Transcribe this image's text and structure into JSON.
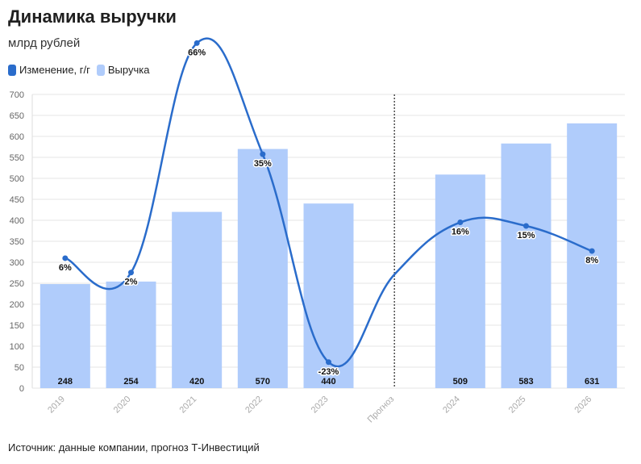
{
  "header": {
    "title": "Динамика выручки",
    "subtitle": "млрд рублей"
  },
  "legend": [
    {
      "label": "Изменение, г/г",
      "color": "#2a6ccb"
    },
    {
      "label": "Выручка",
      "color": "#b0ccfb"
    }
  ],
  "footer": {
    "source": "Источник: данные компании, прогноз Т-Инвестиций"
  },
  "colors": {
    "bar": "#b0ccfb",
    "line": "#2a6ccb",
    "divider": "#333333"
  },
  "chart_data": {
    "type": "bar",
    "categories": [
      "2019",
      "2020",
      "2021",
      "2022",
      "2023",
      "Прогноз",
      "2024",
      "2025",
      "2026"
    ],
    "series": [
      {
        "name": "Выручка",
        "type": "bar",
        "values": [
          248,
          254,
          420,
          570,
          440,
          null,
          509,
          583,
          631
        ],
        "labels": [
          "248",
          "254",
          "420",
          "570",
          "440",
          "",
          "509",
          "583",
          "631"
        ]
      },
      {
        "name": "Изменение, г/г",
        "type": "line",
        "values": [
          6,
          2,
          66,
          35,
          -23,
          null,
          16,
          15,
          8
        ],
        "labels": [
          "6%",
          "2%",
          "66%",
          "35%",
          "-23%",
          "",
          "16%",
          "15%",
          "8%"
        ]
      }
    ],
    "yticks": [
      0,
      50,
      100,
      150,
      200,
      250,
      300,
      350,
      400,
      450,
      500,
      550,
      600,
      650,
      700
    ],
    "ylim": [
      0,
      700
    ],
    "forecast_divider_after": "2023",
    "grid": true
  }
}
